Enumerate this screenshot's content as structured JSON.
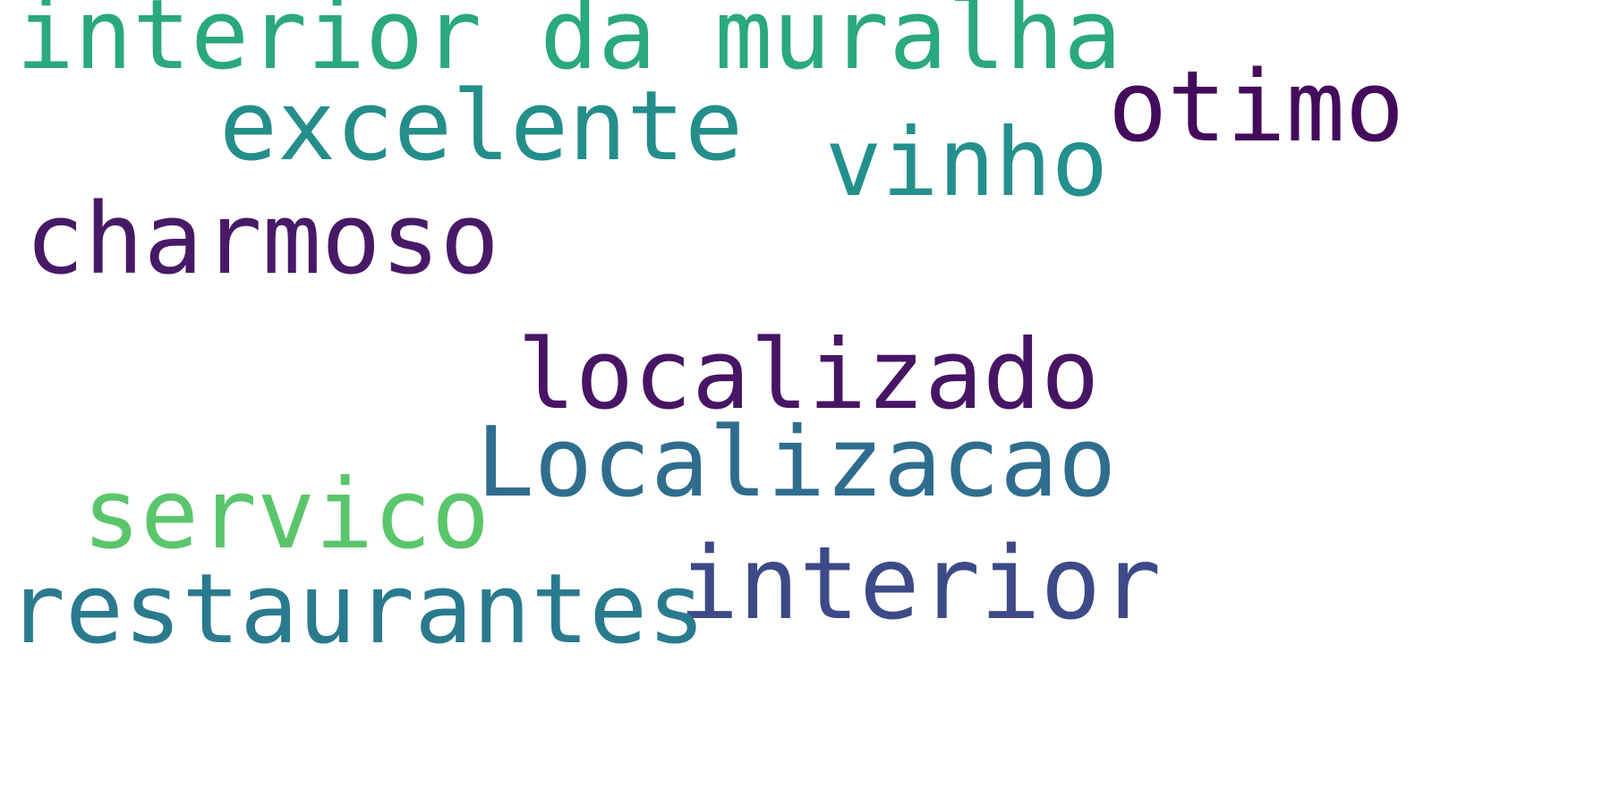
{
  "word_cloud": {
    "words": [
      {
        "text": "interior da muralha",
        "color": "#2aa87f"
      },
      {
        "text": "excelente",
        "color": "#248e8b"
      },
      {
        "text": "otimo",
        "color": "#440b5c"
      },
      {
        "text": "vinho",
        "color": "#22908d"
      },
      {
        "text": "charmoso",
        "color": "#481967"
      },
      {
        "text": "localizado",
        "color": "#471564"
      },
      {
        "text": "Localizacao",
        "color": "#2f6d8e"
      },
      {
        "text": "servico",
        "color": "#5ac66b"
      },
      {
        "text": "interior",
        "color": "#3d4a88"
      },
      {
        "text": "restaurantes",
        "color": "#2a7a8e"
      }
    ]
  }
}
